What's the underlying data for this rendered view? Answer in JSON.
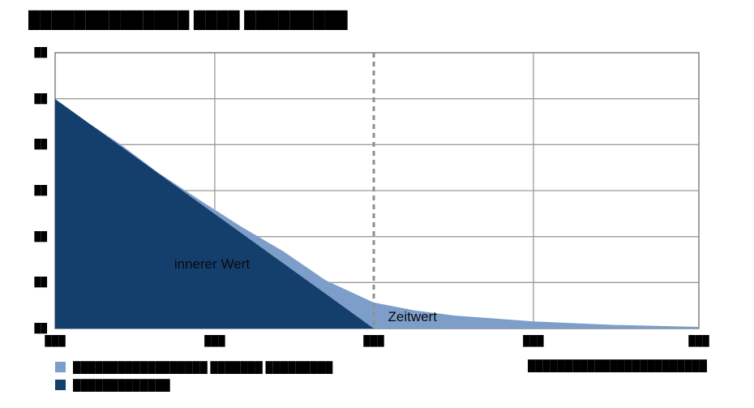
{
  "title": "██████████████ ████ █████████",
  "source_note": "████████████████████████",
  "legend": {
    "items": [
      {
        "label": "██████████████████ ███████ █████████",
        "color": "#7d9ec9"
      },
      {
        "label": "█████████████",
        "color": "#143f6d"
      }
    ]
  },
  "chart_data": {
    "type": "area",
    "annotations": [
      {
        "text": "innerer Wert",
        "x": 0.185,
        "y": 0.218
      },
      {
        "text": "Zeitwert",
        "x": 0.517,
        "y": 0.026
      }
    ],
    "x_axis": {
      "tick_labels": [
        "███",
        "███",
        "███",
        "███",
        "███"
      ],
      "tick_pos": [
        0,
        0.248,
        0.495,
        0.743,
        1
      ]
    },
    "y_axis": {
      "tick_labels": [
        "██",
        "██",
        "██",
        "██",
        "██",
        "██",
        "██"
      ]
    },
    "grid_rows": 6,
    "x_gridlines": [
      0.248,
      0.743
    ],
    "dashed_vline_x": 0.495,
    "series": [
      {
        "name": "gesamtwert-area",
        "color": "#7d9ec9",
        "points": [
          [
            0,
            0.832
          ],
          [
            0.05,
            0.748
          ],
          [
            0.103,
            0.665
          ],
          [
            0.16,
            0.565
          ],
          [
            0.229,
            0.459
          ],
          [
            0.29,
            0.368
          ],
          [
            0.355,
            0.279
          ],
          [
            0.42,
            0.175
          ],
          [
            0.495,
            0.094
          ],
          [
            0.56,
            0.065
          ],
          [
            0.62,
            0.047
          ],
          [
            0.743,
            0.026
          ],
          [
            0.87,
            0.013
          ],
          [
            1,
            0.006
          ],
          [
            1,
            0
          ],
          [
            0,
            0
          ]
        ]
      },
      {
        "name": "innerer-wert-area",
        "color": "#143f6d",
        "points": [
          [
            0,
            0.832
          ],
          [
            0.495,
            0
          ],
          [
            0,
            0
          ]
        ]
      }
    ],
    "colors": {
      "grid": "#9b9b9b",
      "border": "#8a8a8a",
      "dashed_line": "#8f8f8f",
      "annotation_text": "#0a0a0a"
    }
  }
}
